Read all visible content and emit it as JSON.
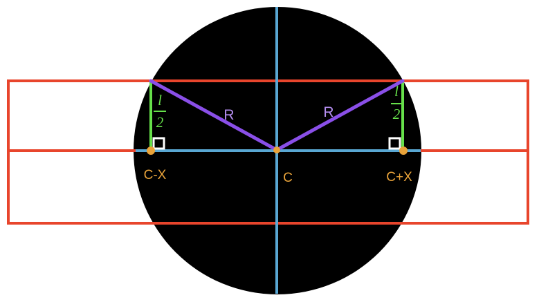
{
  "colors": {
    "background": "#ffffff",
    "circle": "#000000",
    "rectangle": "#e8452c",
    "axis": "#59a7d3",
    "radius": "#8a4fe8",
    "half_length": "#66e04a",
    "point": "#e9a33a",
    "point_label": "#e9a33a",
    "radius_label": "#b58ef0",
    "right_angle": "#ffffff"
  },
  "labels": {
    "radius_left": "R",
    "radius_right": "R",
    "half_length_numerator": "l",
    "half_length_denominator": "2",
    "point_left": "C-X",
    "point_center": "C",
    "point_right": "C+X"
  }
}
